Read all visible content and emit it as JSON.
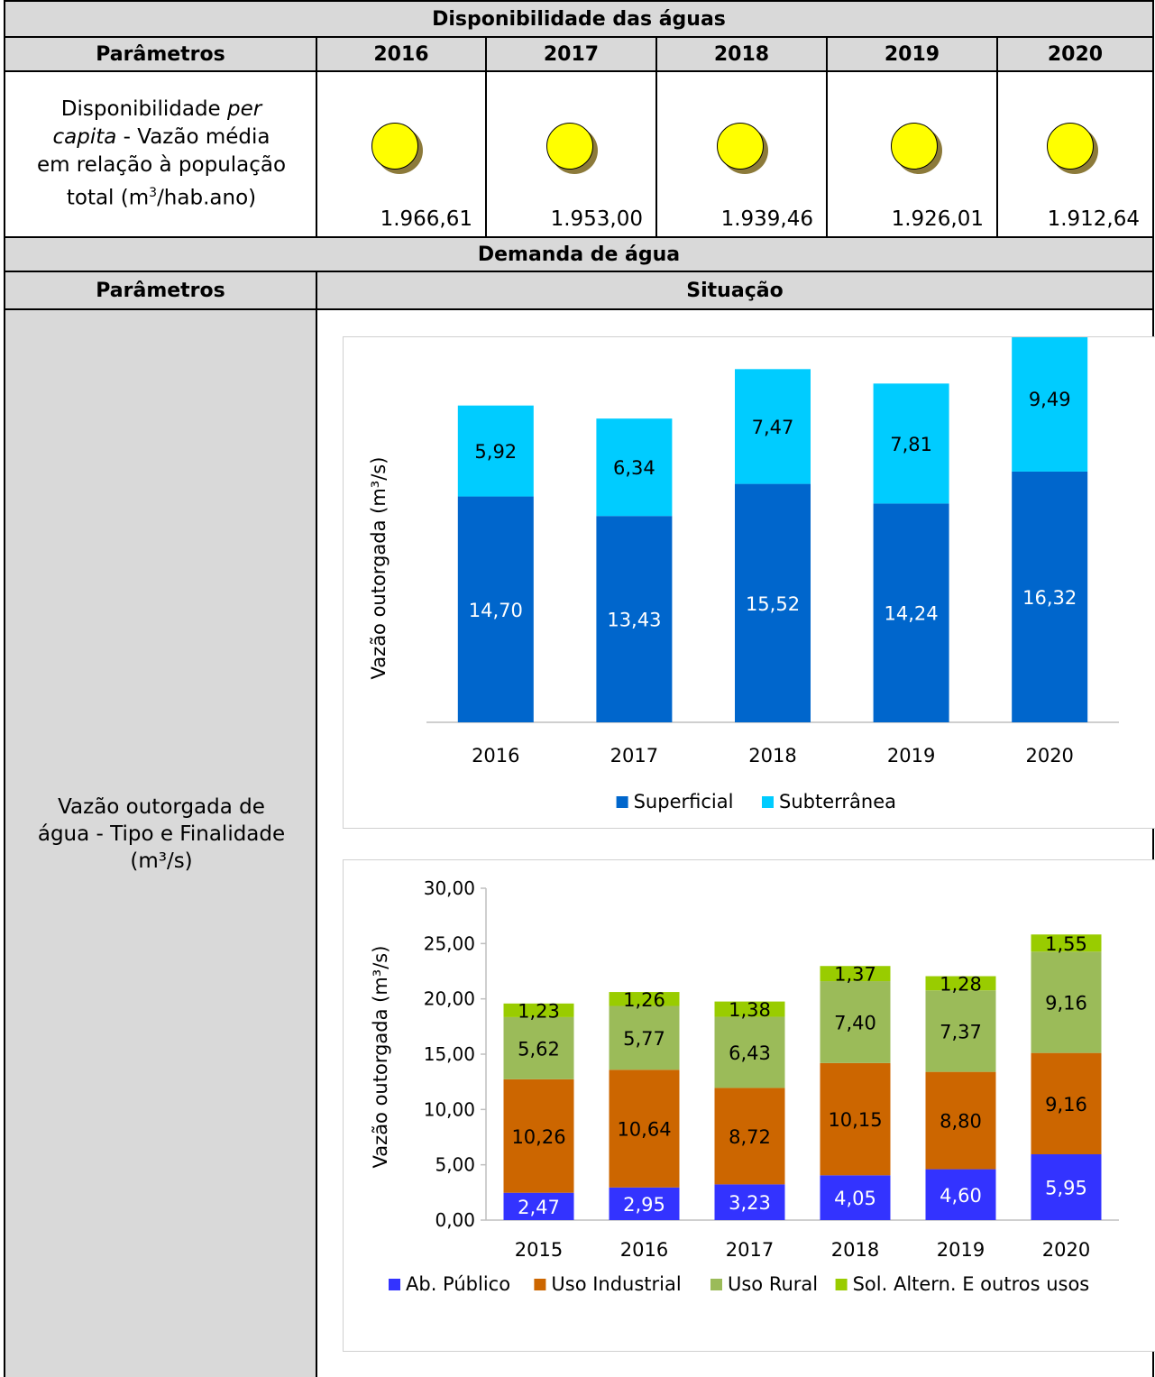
{
  "table": {
    "section1_title": "Disponibilidade das águas",
    "params_header": "Parâmetros",
    "years": [
      "2016",
      "2017",
      "2018",
      "2019",
      "2020"
    ],
    "row1_param": {
      "line1": "Disponibilidade ",
      "line1_italic": "per",
      "line2_italic": "capita",
      "line2": " - Vazão média",
      "line3": "em relação à população",
      "line4_a": "total (m",
      "line4_sup": "3",
      "line4_b": "/hab.ano)"
    },
    "row1_values": [
      "1.966,61",
      "1.953,00",
      "1.939,46",
      "1.926,01",
      "1.912,64"
    ],
    "indicator_icon": "yellow-circle-icon",
    "indicator_color": "#ffff00",
    "section2_title": "Demanda de água",
    "situation_header": "Situação",
    "row2_param": {
      "line1": "Vazão outorgada de",
      "line2": "água - Tipo e Finalidade",
      "line3": "(m³/s)"
    }
  },
  "chart_data": [
    {
      "type": "bar",
      "stacked": true,
      "title": "",
      "ylabel": "Vazão outorgada (m³/s)",
      "categories": [
        "2016",
        "2017",
        "2018",
        "2019",
        "2020"
      ],
      "series": [
        {
          "name": "Superficial",
          "color": "#0066cc",
          "label_color": "#ffffff",
          "values": [
            14.7,
            13.43,
            15.52,
            14.24,
            16.32
          ],
          "labels": [
            "14,70",
            "13,43",
            "15,52",
            "14,24",
            "16,32"
          ]
        },
        {
          "name": "Subterrânea",
          "color": "#00ccff",
          "label_color": "#000000",
          "values": [
            5.92,
            6.34,
            7.47,
            7.81,
            9.49
          ],
          "labels": [
            "5,92",
            "6,34",
            "7,47",
            "7,81",
            "9,49"
          ]
        }
      ],
      "ylim": [
        0,
        27
      ],
      "show_y_axis": false,
      "grid": false,
      "legend": "bottom"
    },
    {
      "type": "bar",
      "stacked": true,
      "title": "",
      "ylabel": "Vazão outorgada (m³/s)",
      "categories": [
        "2015",
        "2016",
        "2017",
        "2018",
        "2019",
        "2020"
      ],
      "yticks": [
        "0,00",
        "5,00",
        "10,00",
        "15,00",
        "20,00",
        "25,00",
        "30,00"
      ],
      "ylim": [
        0,
        30
      ],
      "series": [
        {
          "name": "Ab. Público",
          "color": "#3333ff",
          "label_color": "#ffffff",
          "values": [
            2.47,
            2.95,
            3.23,
            4.05,
            4.6,
            5.95
          ],
          "labels": [
            "2,47",
            "2,95",
            "3,23",
            "4,05",
            "4,60",
            "5,95"
          ]
        },
        {
          "name": "Uso Industrial",
          "color": "#cc6600",
          "label_color": "#000000",
          "values": [
            10.26,
            10.64,
            8.72,
            10.15,
            8.8,
            9.16
          ],
          "labels": [
            "10,26",
            "10,64",
            "8,72",
            "10,15",
            "8,80",
            "9,16"
          ]
        },
        {
          "name": "Uso Rural",
          "color": "#9bbb59",
          "label_color": "#000000",
          "values": [
            5.62,
            5.77,
            6.43,
            7.4,
            7.37,
            9.16
          ],
          "labels": [
            "5,62",
            "5,77",
            "6,43",
            "7,40",
            "7,37",
            "9,16"
          ]
        },
        {
          "name": "Sol. Altern. E outros usos",
          "color": "#99cc00",
          "label_color": "#000000",
          "values": [
            1.23,
            1.26,
            1.38,
            1.37,
            1.28,
            1.55
          ],
          "labels": [
            "1,23",
            "1,26",
            "1,38",
            "1,37",
            "1,28",
            "1,55"
          ]
        }
      ],
      "grid": false,
      "legend": "bottom"
    }
  ]
}
